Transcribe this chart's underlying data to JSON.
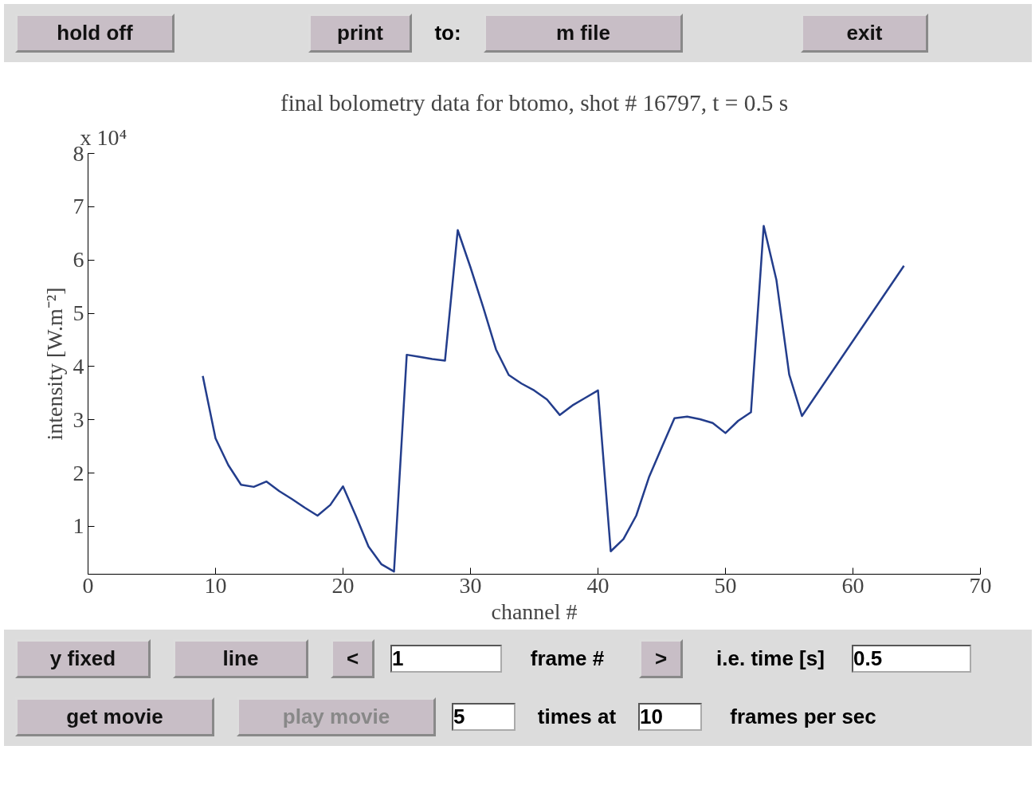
{
  "chart_data": {
    "type": "line",
    "title": "final bolometry data for btomo, shot # 16797, t = 0.5 s",
    "xlabel": "channel #",
    "ylabel": "intensity [W.m⁻²]",
    "x": [
      9,
      10,
      11,
      12,
      13,
      14,
      15,
      16,
      17,
      18,
      19,
      20,
      21,
      22,
      23,
      24,
      25,
      26,
      27,
      28,
      29,
      30,
      31,
      32,
      33,
      34,
      35,
      36,
      37,
      38,
      39,
      40,
      41,
      42,
      43,
      44,
      45,
      46,
      47,
      48,
      49,
      50,
      51,
      52,
      53,
      54,
      55,
      56,
      64
    ],
    "series": [
      {
        "color": "#233d8c",
        "values": [
          3.82,
          2.65,
          2.15,
          1.78,
          1.74,
          1.84,
          1.66,
          1.51,
          1.35,
          1.2,
          1.4,
          1.75,
          1.2,
          0.62,
          0.29,
          0.15,
          4.22,
          4.18,
          4.14,
          4.11,
          6.56,
          5.86,
          5.11,
          4.32,
          3.84,
          3.68,
          3.55,
          3.38,
          3.09,
          3.27,
          3.41,
          3.55,
          0.53,
          0.76,
          1.2,
          1.92,
          2.48,
          3.03,
          3.06,
          3.01,
          2.94,
          2.75,
          2.98,
          3.14,
          6.64,
          5.62,
          3.85,
          3.07,
          5.89
        ]
      }
    ],
    "xlim": [
      0,
      70
    ],
    "ylim": [
      0.1,
      8
    ],
    "xticks": [
      0,
      10,
      20,
      30,
      40,
      50,
      60,
      70
    ],
    "yticks": [
      1,
      2,
      3,
      4,
      5,
      6,
      7,
      8
    ],
    "grid": false,
    "marker": "none",
    "line_style": "solid",
    "annotations": [
      "x 10⁴",
      "hold off",
      "print",
      "to:",
      "m file",
      "exit",
      "y fixed",
      "line",
      "<",
      "1",
      "frame #",
      ">",
      "i.e. time [s]",
      "0.5",
      "get movie",
      "play movie",
      "5",
      "times at",
      "10",
      "frames per sec"
    ]
  }
}
